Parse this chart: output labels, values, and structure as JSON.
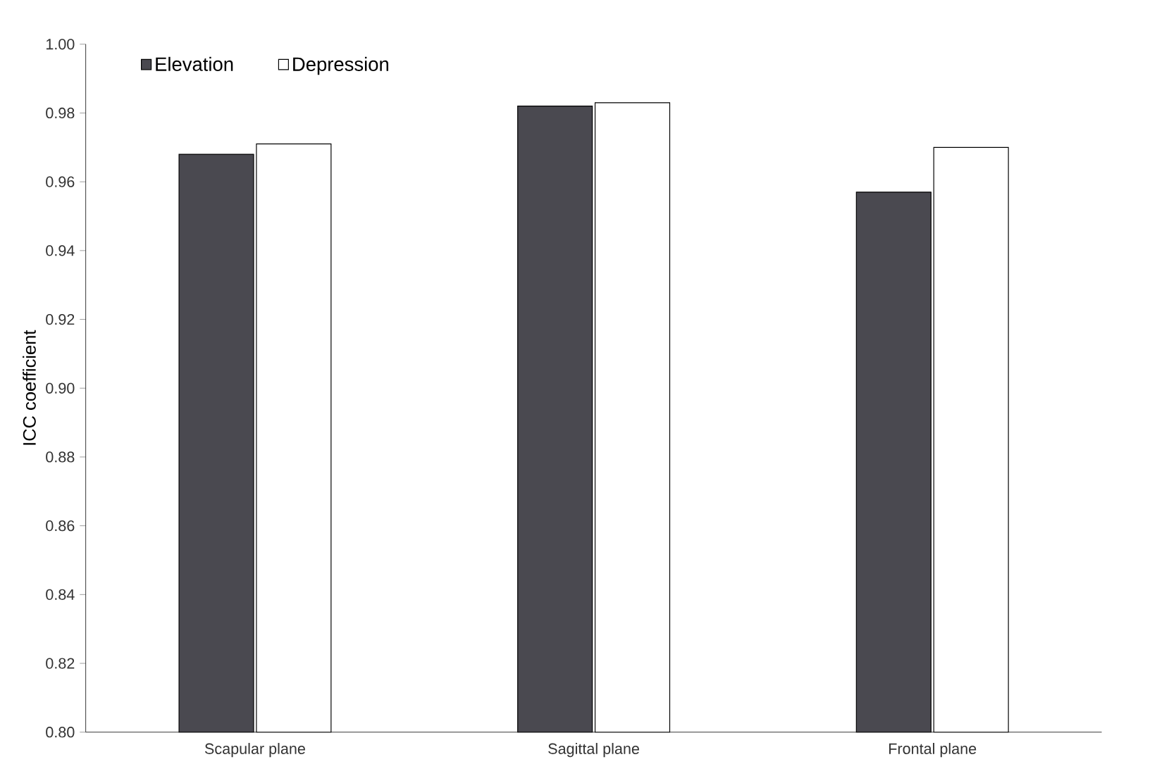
{
  "chart_data": {
    "type": "bar",
    "ylabel": "ICC coefficient",
    "categories": [
      "Scapular plane",
      "Sagittal plane",
      "Frontal plane"
    ],
    "series": [
      {
        "name": "Elevation",
        "color": "#4a4950",
        "values": [
          0.968,
          0.982,
          0.957
        ]
      },
      {
        "name": "Depression",
        "color": "#ffffff",
        "values": [
          0.971,
          0.983,
          0.97
        ]
      }
    ],
    "ylim": [
      0.8,
      1.0
    ],
    "yticks": [
      {
        "value": 0.8,
        "label": "0.80"
      },
      {
        "value": 0.82,
        "label": "0.82"
      },
      {
        "value": 0.84,
        "label": "0.84"
      },
      {
        "value": 0.86,
        "label": "0.86"
      },
      {
        "value": 0.88,
        "label": "0.88"
      },
      {
        "value": 0.9,
        "label": "0.90"
      },
      {
        "value": 0.92,
        "label": "0.92"
      },
      {
        "value": 0.94,
        "label": "0.94"
      },
      {
        "value": 0.96,
        "label": "0.96"
      },
      {
        "value": 0.98,
        "label": "0.98"
      },
      {
        "value": 1.0,
        "label": "1.00"
      }
    ],
    "grid": false,
    "legend": "top left"
  }
}
